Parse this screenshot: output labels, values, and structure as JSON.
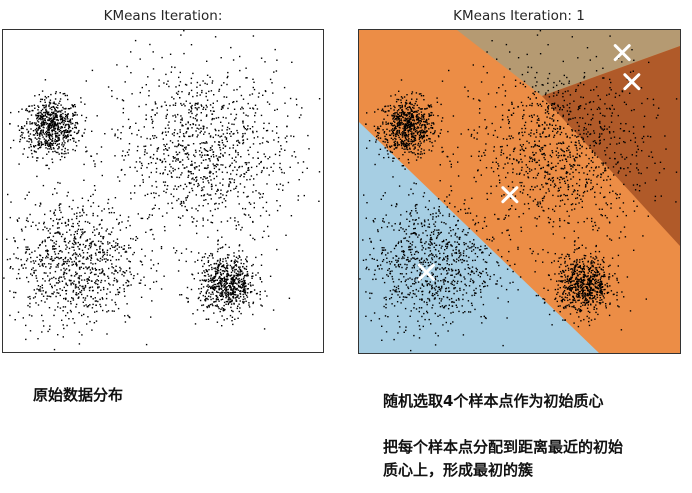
{
  "chart_data": [
    {
      "type": "scatter",
      "title": "KMeans Iteration: ",
      "xlabel": "",
      "ylabel": "",
      "axes_ticks": false,
      "grid": false,
      "clusters": [
        {
          "name": "top-left blob",
          "center": [
            0.15,
            0.7
          ],
          "spread": 0.045,
          "count": 700
        },
        {
          "name": "top-right large",
          "center": [
            0.62,
            0.62
          ],
          "spread": 0.14,
          "count": 1100
        },
        {
          "name": "bottom-left",
          "center": [
            0.22,
            0.28
          ],
          "spread": 0.1,
          "count": 900
        },
        {
          "name": "bottom-right blob",
          "center": [
            0.7,
            0.21
          ],
          "spread": 0.045,
          "count": 700
        }
      ],
      "point_color": "#000000"
    },
    {
      "type": "scatter",
      "title": "KMeans Iteration: 1",
      "xlabel": "",
      "ylabel": "",
      "axes_ticks": false,
      "grid": false,
      "regions": [
        {
          "name": "light-blue",
          "color": "#a6cee3"
        },
        {
          "name": "orange",
          "color": "#ec8d46"
        },
        {
          "name": "tan",
          "color": "#b59a72"
        },
        {
          "name": "brown",
          "color": "#b05a29"
        }
      ],
      "centroids": [
        {
          "x": 0.21,
          "y": 0.25,
          "marker": "x",
          "color": "#ffffff"
        },
        {
          "x": 0.47,
          "y": 0.49,
          "marker": "x",
          "color": "#ffffff"
        },
        {
          "x": 0.82,
          "y": 0.93,
          "marker": "x",
          "color": "#ffffff"
        },
        {
          "x": 0.85,
          "y": 0.84,
          "marker": "x",
          "color": "#ffffff"
        }
      ]
    }
  ],
  "left": {
    "title": "KMeans Iteration:",
    "caption": "原始数据分布"
  },
  "right": {
    "title": "KMeans Iteration: 1",
    "caption1": "随机选取4个样本点作为初始质心",
    "caption2_line1": "把每个样本点分配到距离最近的初始",
    "caption2_line2": "质心上，形成最初的簇"
  }
}
